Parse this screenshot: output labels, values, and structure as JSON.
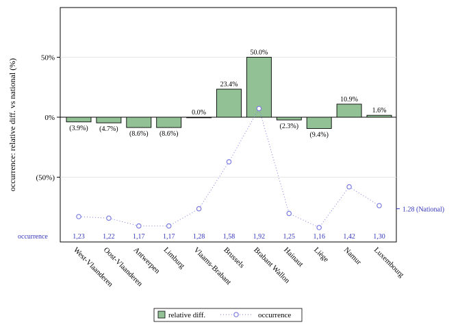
{
  "chart_data": {
    "type": "bar",
    "ylabel": "occurrence: relative diff. vs national (%)",
    "yticks": [
      "50%",
      "0%",
      "(50%)"
    ],
    "ytick_values": [
      50,
      0,
      -50
    ],
    "ylim": [
      -100,
      90
    ],
    "categories": [
      "West-Vlaanderen",
      "Oost-Vlaanderen",
      "Antwerpen",
      "Limburg",
      "Vlaams-Brabant",
      "Brussels",
      "Brabant Wallon",
      "Hainaut",
      "Liège",
      "Namur",
      "Luxembourg"
    ],
    "series": [
      {
        "name": "relative diff.",
        "type": "bar",
        "color": "#93c196",
        "values": [
          -3.9,
          -4.7,
          -8.6,
          -8.6,
          0.0,
          23.4,
          50.0,
          -2.3,
          -9.4,
          10.9,
          1.6
        ],
        "labels": [
          "(3.9%)",
          "(4.7%)",
          "(8.6%)",
          "(8.6%)",
          "0.0%",
          "23.4%",
          "50.0%",
          "(2.3%)",
          "(9.4%)",
          "10.9%",
          "1.6%"
        ]
      },
      {
        "name": "occurrence",
        "type": "line",
        "color": "#7b7be0",
        "values": [
          1.23,
          1.22,
          1.17,
          1.17,
          1.28,
          1.58,
          1.92,
          1.25,
          1.16,
          1.42,
          1.3
        ],
        "labels": [
          "1,23",
          "1,22",
          "1,17",
          "1,17",
          "1,28",
          "1,58",
          "1,92",
          "1,25",
          "1,16",
          "1,42",
          "1,30"
        ]
      }
    ],
    "occurrence_row_label": "occurrence",
    "national_label": "1.28 (National)",
    "national_value": 1.28,
    "legend": {
      "placement": "bottom-center"
    },
    "grid": true
  }
}
